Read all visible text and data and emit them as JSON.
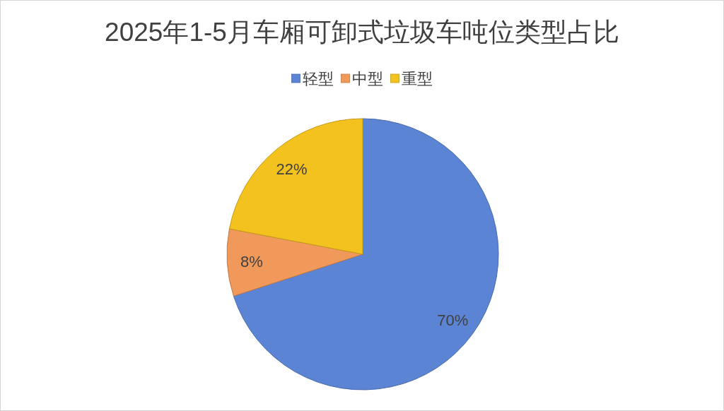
{
  "chart_data": {
    "type": "pie",
    "title": "2025年1-5月车厢可卸式垃圾车吨位类型占比",
    "categories": [
      "轻型",
      "中型",
      "重型"
    ],
    "values": [
      70,
      8,
      22
    ],
    "value_labels": [
      "70%",
      "8%",
      "22%"
    ],
    "colors": [
      "#5b84d4",
      "#f0995a",
      "#f3c21e"
    ],
    "legend": "top"
  }
}
